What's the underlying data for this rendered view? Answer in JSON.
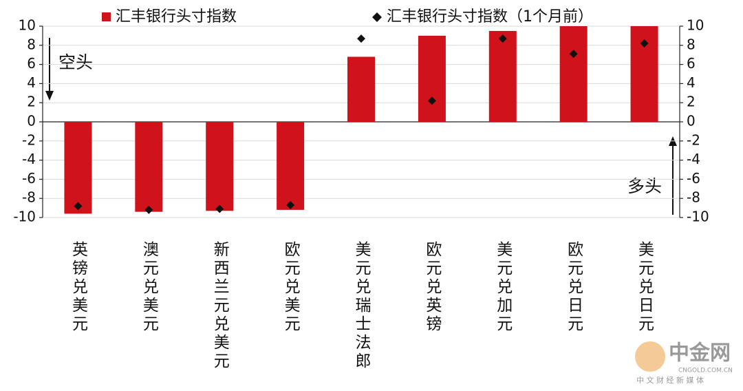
{
  "chart_data": {
    "type": "bar",
    "categories": [
      "英镑兑美元",
      "澳元兑美元",
      "新西兰元兑美元",
      "欧元兑美元",
      "美元兑瑞士法郎",
      "欧元兑英镑",
      "美元兑加元",
      "欧元兑日元",
      "美元兑日元"
    ],
    "series": [
      {
        "name": "汇丰银行头寸指数",
        "color": "#d0121b",
        "values": [
          -9.6,
          -9.4,
          -9.3,
          -9.2,
          6.8,
          9.0,
          9.5,
          10,
          10
        ]
      },
      {
        "name": "汇丰银行头寸指数（1个月前）",
        "color": "#111111",
        "values": [
          -8.8,
          -9.2,
          -9.1,
          -8.7,
          8.7,
          2.2,
          8.7,
          7.1,
          8.2
        ]
      }
    ],
    "ylim": [
      -10,
      10
    ],
    "yticks": [
      -10,
      -8,
      -6,
      -4,
      -2,
      0,
      2,
      4,
      6,
      8,
      10
    ],
    "y2lim": [
      -10,
      10
    ],
    "y2ticks": [
      -10,
      -8,
      -6,
      -4,
      -2,
      0,
      2,
      4,
      6,
      8,
      10
    ],
    "grid": true,
    "annotations": [
      "空头",
      "多头"
    ],
    "watermark": {
      "brand": "中金网",
      "site": "CNGOLD.COM.CN",
      "slogan": "中 文 财 经 新 媒 体"
    }
  }
}
